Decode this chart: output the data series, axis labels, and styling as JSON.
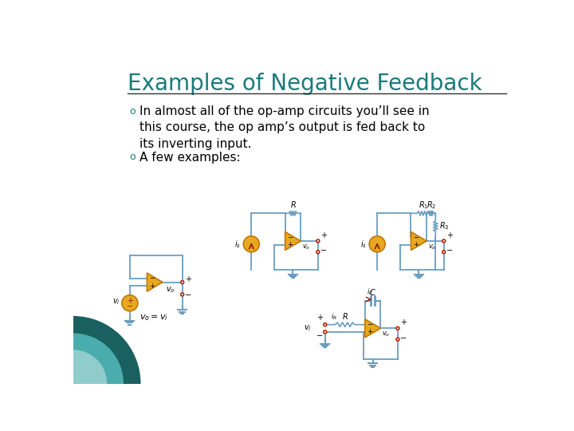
{
  "title": "Examples of Negative Feedback",
  "title_color": "#1a7a7a",
  "title_fontsize": 20,
  "bg_color": "#ffffff",
  "left_decoration_color1": "#1a6060",
  "left_decoration_color2": "#4aacac",
  "left_decoration_color3": "#90cccc",
  "bullet_color": "#1a7a7a",
  "bullet1": "In almost all of the op-amp circuits you’ll see in\nthis course, the op amp’s output is fed back to\nits inverting input.",
  "bullet2": "A few examples:",
  "text_color": "#000000",
  "text_fontsize": 11,
  "circuit_color": "#6a9ec0",
  "opamp_color": "#e8a820",
  "opamp_edge": "#c07808",
  "wire_color": "#6a9ec0",
  "terminal_color": "#bb2200",
  "ground_color": "#6a9ec0",
  "label_color": "#000000",
  "label_fontsize": 7
}
